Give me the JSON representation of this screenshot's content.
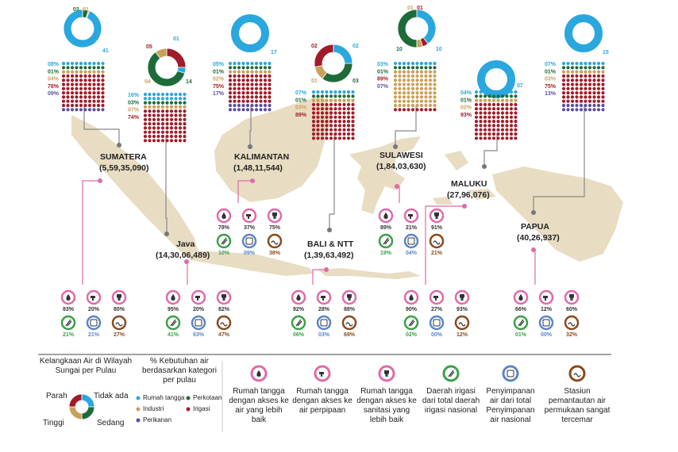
{
  "colors": {
    "rumah_tangga": "#2aa7de",
    "perkotaan": "#1e6b3a",
    "industri": "#c9a05a",
    "irigasi": "#a11c2a",
    "perikanan": "#5a4ea2",
    "pink": "#e16aa8",
    "green": "#3aa047",
    "blue": "#5a86c5",
    "brown": "#8a4a1e",
    "land": "#e8dcc2",
    "line": "#888888"
  },
  "regions": [
    {
      "id": "sumatera",
      "name": "SUMATERA",
      "population": "(5,59,35,090)",
      "scarcity": {
        "tidak_ada": "41",
        "sedang": "",
        "tinggi": "",
        "parah": "",
        "top_labels": [
          "03",
          "01"
        ]
      },
      "sector_pct": [
        "08%",
        "01%",
        "04%",
        "78%",
        "09%"
      ],
      "indicators": {
        "rt_air_lebih_baik": "83%",
        "rt_perpipaan": "20%",
        "rt_sanitasi": "80%",
        "daerah_irigasi": "21%",
        "penyimpanan_air": "21%",
        "stasiun_tercemar": "27%"
      }
    },
    {
      "id": "java",
      "name": "Java",
      "population": "(14,30,06,489)",
      "scarcity": {
        "labels": [
          "05",
          "01",
          "04",
          "14"
        ]
      },
      "sector_pct": [
        "16%",
        "03%",
        "07%",
        "74%"
      ],
      "indicators": {
        "rt_air_lebih_baik": "95%",
        "rt_perpipaan": "20%",
        "rt_sanitasi": "82%",
        "daerah_irigasi": "41%",
        "penyimpanan_air": "63%",
        "stasiun_tercemar": "47%"
      }
    },
    {
      "id": "kalimantan",
      "name": "KALIMANTAN",
      "population": "(1,48,11,544)",
      "scarcity": {
        "labels": [
          "17"
        ]
      },
      "sector_pct": [
        "05%",
        "01%",
        "02%",
        "75%",
        "17%"
      ],
      "indicators": {
        "rt_air_lebih_baik": "78%",
        "rt_perpipaan": "37%",
        "rt_sanitasi": "75%",
        "daerah_irigasi": "10%",
        "penyimpanan_air": "09%",
        "stasiun_tercemar": "38%"
      }
    },
    {
      "id": "bali_ntt",
      "name": "BALI & NTT",
      "population": "(1,39,63,492)",
      "scarcity": {
        "labels": [
          "02",
          "02",
          "01",
          "03"
        ]
      },
      "sector_pct": [
        "07%",
        "01%",
        "03%",
        "89%"
      ],
      "indicators": {
        "rt_air_lebih_baik": "92%",
        "rt_perpipaan": "28%",
        "rt_sanitasi": "88%",
        "daerah_irigasi": "06%",
        "penyimpanan_air": "03%",
        "stasiun_tercemar": "69%"
      }
    },
    {
      "id": "sulawesi",
      "name": "SULAWESI",
      "population": "(1,84,03,630)",
      "scarcity": {
        "labels": [
          "01",
          "01",
          "10",
          "10"
        ]
      },
      "sector_pct": [
        "03%",
        "01%",
        "89%",
        "07%"
      ],
      "indicators": {
        "rt_air_lebih_baik": "89%",
        "rt_perpipaan": "21%",
        "rt_sanitasi": "91%",
        "daerah_irigasi": "19%",
        "penyimpanan_air": "04%",
        "stasiun_tercemar": "21%"
      }
    },
    {
      "id": "maluku",
      "name": "MALUKU",
      "population": "(27,96,076)",
      "scarcity": {
        "labels": [
          "07"
        ]
      },
      "sector_pct": [
        "04%",
        "01%",
        "02%",
        "93%"
      ],
      "indicators": {
        "rt_air_lebih_baik": "90%",
        "rt_perpipaan": "27%",
        "rt_sanitasi": "93%",
        "daerah_irigasi": "02%",
        "penyimpanan_air": "00%",
        "stasiun_tercemar": "12%"
      }
    },
    {
      "id": "papua",
      "name": "PAPUA",
      "population": "(40,26,937)",
      "scarcity": {
        "labels": [
          "15"
        ]
      },
      "sector_pct": [
        "07%",
        "01%",
        "03%",
        "75%",
        "13%"
      ],
      "indicators": {
        "rt_air_lebih_baik": "66%",
        "rt_perpipaan": "12%",
        "rt_sanitasi": "60%",
        "daerah_irigasi": "01%",
        "penyimpanan_air": "00%",
        "stasiun_tercemar": "32%"
      }
    }
  ],
  "kalimantan_row": {
    "rt_air_lebih_baik": "78%",
    "rt_perpipaan": "37%",
    "rt_sanitasi": "75%",
    "daerah_irigasi": "10%",
    "penyimpanan_air": "09%",
    "stasiun_tercemar": "38%"
  },
  "sulawesi_row": {
    "rt_air_lebih_baik": "89%",
    "rt_perpipaan": "21%",
    "rt_sanitasi": "91%",
    "daerah_irigasi": "19%",
    "penyimpanan_air": "04%",
    "stasiun_tercemar": "21%"
  },
  "legend": {
    "scarcity_title": "Kelangkaan Air di Wilayah Sungai per Pulau",
    "scarcity_labels": {
      "parah": "Parah",
      "tidak_ada": "Tidak ada",
      "tinggi": "Tinggi",
      "sedang": "Sedang"
    },
    "sector_title": "% Kebutuhan air berdasarkan kategori per pulau",
    "sector_items": [
      {
        "key": "rumah_tangga",
        "label": "Rumah tangga"
      },
      {
        "key": "perkotaan",
        "label": "Perkotaan"
      },
      {
        "key": "industri",
        "label": "Industri"
      },
      {
        "key": "irigasi",
        "label": "Irigasi"
      },
      {
        "key": "perikanan",
        "label": "Perikanan"
      }
    ],
    "indicator_items": [
      {
        "key": "rt_air_lebih_baik",
        "icon": "water-drop-icon",
        "label": "Rumah tangga dengan akses ke air yang lebih baik"
      },
      {
        "key": "rt_perpipaan",
        "icon": "faucet-icon",
        "label": "Rumah tangga dengan akses ke air perpipaan"
      },
      {
        "key": "rt_sanitasi",
        "icon": "toilet-icon",
        "label": "Rumah tangga dengan akses ke sanitasi yang lebih baik"
      },
      {
        "key": "daerah_irigasi",
        "icon": "irrigation-icon",
        "label": "Daerah irigasi dari total daerah irigasi nasional"
      },
      {
        "key": "penyimpanan_air",
        "icon": "storage-icon",
        "label": "Penyimpanan air dari total Penyimpanan air nasional"
      },
      {
        "key": "stasiun_tercemar",
        "icon": "polluted-station-icon",
        "label": "Stasiun pemantautan air permukaan sangat tercemar"
      }
    ]
  }
}
